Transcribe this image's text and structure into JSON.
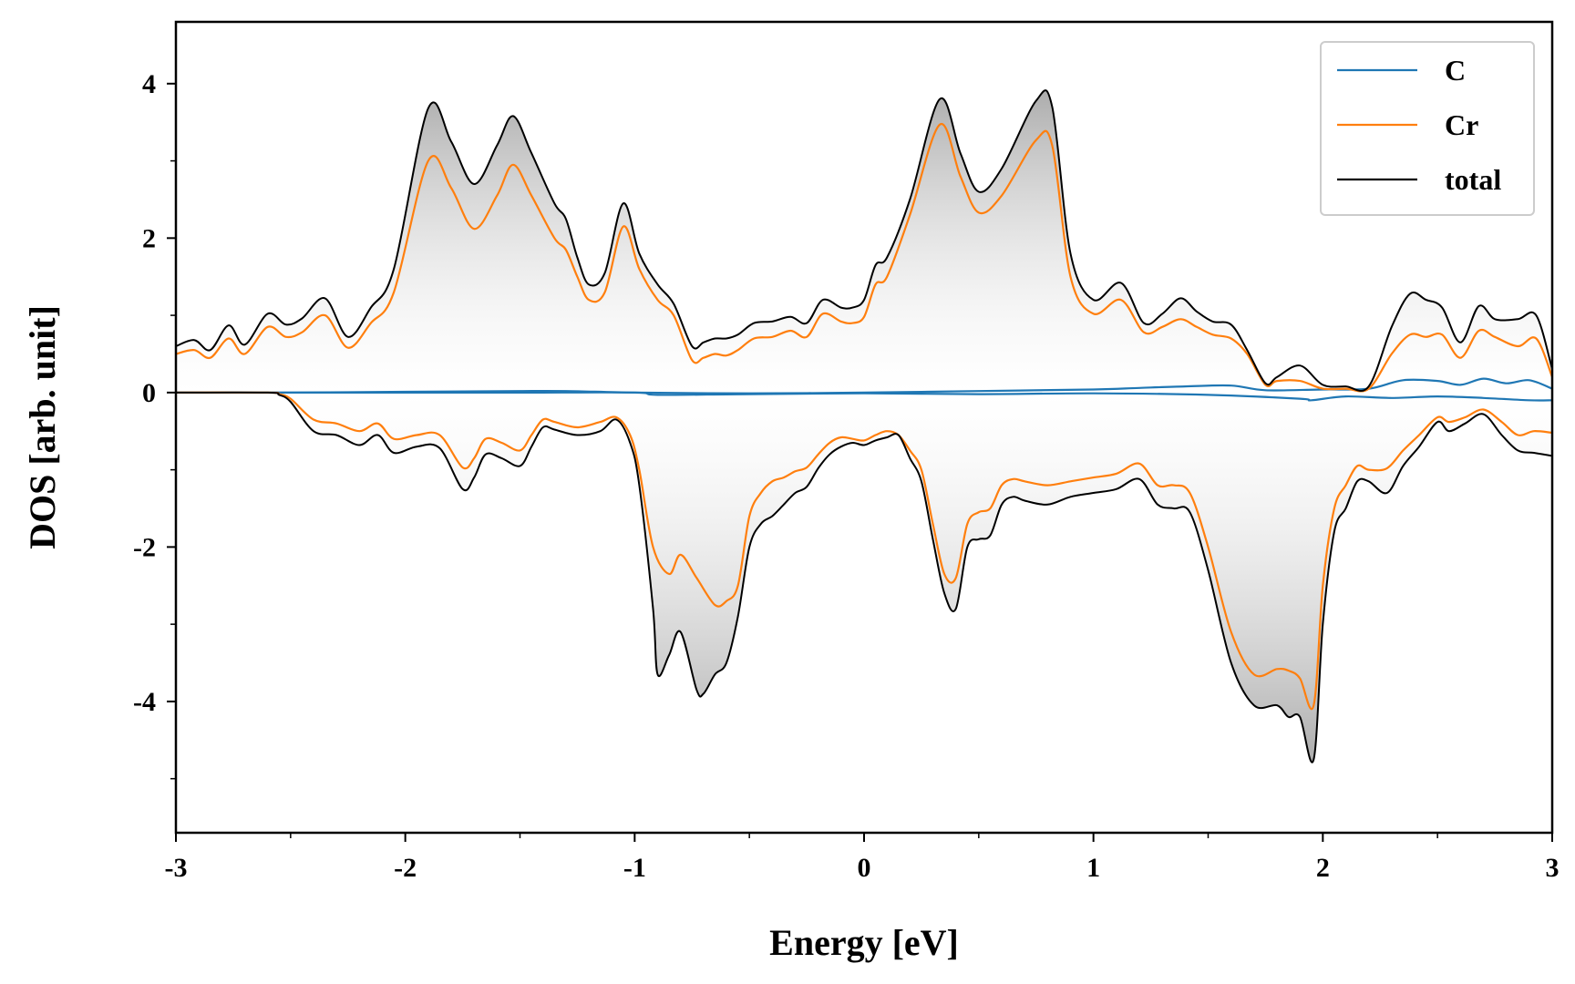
{
  "chart_data": {
    "type": "line",
    "title": "",
    "xlabel": "Energy [eV]",
    "ylabel": "DOS [arb. unit]",
    "xlim": [
      -3,
      3
    ],
    "ylim": [
      -5.7,
      4.8
    ],
    "x_ticks": [
      -3,
      -2,
      -1,
      0,
      1,
      2,
      3
    ],
    "x_tick_labels": [
      "-3",
      "-2",
      "-1",
      "0",
      "1",
      "2",
      "3"
    ],
    "y_ticks": [
      -4,
      -2,
      0,
      2,
      4
    ],
    "y_tick_labels": [
      "-4",
      "-2",
      "0",
      "2",
      "4"
    ],
    "grid": false,
    "legend_position": "top-right",
    "fill": "gray gradient between total curves and zero",
    "colors": {
      "C": "#1f77b4",
      "Cr": "#ff7f0e",
      "total": "#000000",
      "fill": "#bdbdbd"
    },
    "series": [
      {
        "name": "C",
        "spin": "up",
        "x": [
          -3.0,
          -2.5,
          -2.0,
          -1.5,
          -1.3,
          -1.0,
          -0.5,
          0.0,
          0.5,
          1.0,
          1.2,
          1.4,
          1.6,
          1.75,
          2.0,
          2.2,
          2.35,
          2.5,
          2.6,
          2.7,
          2.8,
          2.9,
          3.0
        ],
        "y": [
          0.0,
          0.0,
          0.01,
          0.02,
          0.02,
          0.0,
          -0.01,
          0.0,
          0.02,
          0.04,
          0.06,
          0.08,
          0.09,
          0.03,
          0.04,
          0.05,
          0.16,
          0.15,
          0.1,
          0.18,
          0.12,
          0.16,
          0.05
        ]
      },
      {
        "name": "C",
        "spin": "down",
        "x": [
          -3.0,
          -2.5,
          -2.0,
          -1.5,
          -1.0,
          -0.9,
          -0.5,
          0.0,
          0.5,
          1.0,
          1.5,
          1.9,
          1.95,
          2.1,
          2.3,
          2.5,
          2.7,
          2.9,
          3.0
        ],
        "y": [
          0.0,
          0.0,
          0.0,
          0.0,
          0.0,
          -0.03,
          -0.02,
          -0.01,
          -0.02,
          -0.01,
          -0.03,
          -0.08,
          -0.1,
          -0.05,
          -0.07,
          -0.05,
          -0.07,
          -0.1,
          -0.1
        ]
      },
      {
        "name": "Cr",
        "spin": "up",
        "x": [
          -3.0,
          -2.92,
          -2.85,
          -2.77,
          -2.7,
          -2.6,
          -2.52,
          -2.45,
          -2.35,
          -2.25,
          -2.15,
          -2.05,
          -1.9,
          -1.8,
          -1.7,
          -1.6,
          -1.53,
          -1.45,
          -1.35,
          -1.3,
          -1.25,
          -1.2,
          -1.13,
          -1.05,
          -0.98,
          -0.9,
          -0.83,
          -0.75,
          -0.7,
          -0.65,
          -0.6,
          -0.55,
          -0.48,
          -0.4,
          -0.32,
          -0.25,
          -0.18,
          -0.1,
          -0.05,
          0.0,
          0.05,
          0.1,
          0.2,
          0.33,
          0.42,
          0.5,
          0.6,
          0.75,
          0.82,
          0.9,
          1.0,
          1.12,
          1.22,
          1.3,
          1.38,
          1.45,
          1.52,
          1.6,
          1.67,
          1.75,
          1.8,
          1.9,
          2.0,
          2.1,
          2.2,
          2.3,
          2.38,
          2.45,
          2.52,
          2.6,
          2.68,
          2.75,
          2.85,
          2.93,
          3.0
        ],
        "y": [
          0.5,
          0.55,
          0.45,
          0.7,
          0.5,
          0.85,
          0.72,
          0.78,
          1.0,
          0.58,
          0.9,
          1.3,
          3.0,
          2.65,
          2.12,
          2.55,
          2.95,
          2.55,
          2.0,
          1.85,
          1.5,
          1.2,
          1.3,
          2.15,
          1.6,
          1.2,
          1.0,
          0.42,
          0.45,
          0.5,
          0.48,
          0.55,
          0.7,
          0.72,
          0.8,
          0.72,
          1.02,
          0.92,
          0.9,
          0.98,
          1.4,
          1.5,
          2.3,
          3.47,
          2.8,
          2.33,
          2.55,
          3.27,
          3.2,
          1.5,
          1.02,
          1.2,
          0.78,
          0.85,
          0.95,
          0.85,
          0.75,
          0.7,
          0.5,
          0.1,
          0.15,
          0.15,
          0.05,
          0.05,
          0.05,
          0.5,
          0.75,
          0.72,
          0.75,
          0.45,
          0.8,
          0.72,
          0.6,
          0.7,
          0.2
        ]
      },
      {
        "name": "Cr",
        "spin": "down",
        "x": [
          -3.0,
          -2.6,
          -2.55,
          -2.5,
          -2.4,
          -2.3,
          -2.2,
          -2.12,
          -2.05,
          -1.95,
          -1.85,
          -1.75,
          -1.7,
          -1.65,
          -1.58,
          -1.5,
          -1.45,
          -1.4,
          -1.35,
          -1.25,
          -1.15,
          -1.08,
          -1.02,
          -0.98,
          -0.92,
          -0.85,
          -0.8,
          -0.73,
          -0.65,
          -0.6,
          -0.55,
          -0.5,
          -0.45,
          -0.4,
          -0.35,
          -0.3,
          -0.25,
          -0.2,
          -0.15,
          -0.1,
          -0.05,
          0.0,
          0.05,
          0.1,
          0.15,
          0.2,
          0.25,
          0.3,
          0.35,
          0.4,
          0.45,
          0.5,
          0.55,
          0.6,
          0.65,
          0.7,
          0.8,
          0.9,
          1.0,
          1.1,
          1.2,
          1.28,
          1.35,
          1.42,
          1.5,
          1.6,
          1.7,
          1.8,
          1.85,
          1.9,
          1.96,
          2.0,
          2.05,
          2.1,
          2.15,
          2.2,
          2.28,
          2.35,
          2.42,
          2.5,
          2.55,
          2.62,
          2.7,
          2.78,
          2.85,
          2.92,
          3.0
        ],
        "y": [
          0.0,
          0.0,
          -0.02,
          -0.08,
          -0.35,
          -0.4,
          -0.5,
          -0.4,
          -0.6,
          -0.55,
          -0.55,
          -0.97,
          -0.85,
          -0.6,
          -0.65,
          -0.75,
          -0.55,
          -0.35,
          -0.38,
          -0.45,
          -0.38,
          -0.32,
          -0.55,
          -1.0,
          -2.0,
          -2.35,
          -2.1,
          -2.4,
          -2.75,
          -2.7,
          -2.5,
          -1.6,
          -1.3,
          -1.15,
          -1.1,
          -1.02,
          -0.97,
          -0.8,
          -0.65,
          -0.58,
          -0.6,
          -0.62,
          -0.55,
          -0.5,
          -0.55,
          -0.75,
          -1.0,
          -1.7,
          -2.35,
          -2.4,
          -1.7,
          -1.55,
          -1.5,
          -1.2,
          -1.12,
          -1.15,
          -1.2,
          -1.15,
          -1.1,
          -1.05,
          -0.92,
          -1.2,
          -1.2,
          -1.3,
          -2.0,
          -3.1,
          -3.65,
          -3.58,
          -3.6,
          -3.7,
          -4.05,
          -2.5,
          -1.5,
          -1.2,
          -0.95,
          -1.0,
          -0.98,
          -0.75,
          -0.55,
          -0.32,
          -0.38,
          -0.32,
          -0.22,
          -0.38,
          -0.55,
          -0.5,
          -0.52
        ]
      },
      {
        "name": "total",
        "spin": "up",
        "x": [
          -3.0,
          -2.92,
          -2.85,
          -2.77,
          -2.7,
          -2.6,
          -2.52,
          -2.45,
          -2.35,
          -2.25,
          -2.15,
          -2.05,
          -1.9,
          -1.8,
          -1.7,
          -1.6,
          -1.53,
          -1.45,
          -1.35,
          -1.3,
          -1.25,
          -1.2,
          -1.13,
          -1.05,
          -0.98,
          -0.9,
          -0.83,
          -0.75,
          -0.7,
          -0.65,
          -0.6,
          -0.55,
          -0.48,
          -0.4,
          -0.32,
          -0.25,
          -0.18,
          -0.1,
          -0.05,
          0.0,
          0.05,
          0.1,
          0.2,
          0.33,
          0.42,
          0.5,
          0.6,
          0.75,
          0.82,
          0.9,
          1.0,
          1.12,
          1.22,
          1.3,
          1.38,
          1.45,
          1.52,
          1.6,
          1.67,
          1.75,
          1.8,
          1.9,
          2.0,
          2.1,
          2.2,
          2.3,
          2.38,
          2.45,
          2.52,
          2.6,
          2.68,
          2.75,
          2.85,
          2.93,
          3.0
        ],
        "y": [
          0.6,
          0.68,
          0.55,
          0.87,
          0.62,
          1.02,
          0.88,
          0.96,
          1.22,
          0.72,
          1.1,
          1.6,
          3.68,
          3.25,
          2.7,
          3.2,
          3.58,
          3.1,
          2.45,
          2.25,
          1.75,
          1.4,
          1.55,
          2.45,
          1.8,
          1.4,
          1.15,
          0.6,
          0.65,
          0.7,
          0.7,
          0.75,
          0.9,
          0.92,
          0.98,
          0.9,
          1.2,
          1.1,
          1.1,
          1.2,
          1.65,
          1.75,
          2.5,
          3.8,
          3.1,
          2.6,
          2.9,
          3.78,
          3.7,
          1.8,
          1.2,
          1.42,
          0.9,
          1.02,
          1.22,
          1.05,
          0.92,
          0.88,
          0.55,
          0.12,
          0.2,
          0.35,
          0.1,
          0.08,
          0.08,
          0.85,
          1.28,
          1.2,
          1.1,
          0.65,
          1.12,
          0.95,
          0.95,
          1.0,
          0.3
        ]
      },
      {
        "name": "total",
        "spin": "down",
        "x": [
          -3.0,
          -2.6,
          -2.55,
          -2.5,
          -2.4,
          -2.3,
          -2.2,
          -2.12,
          -2.05,
          -1.95,
          -1.85,
          -1.75,
          -1.7,
          -1.65,
          -1.58,
          -1.5,
          -1.45,
          -1.4,
          -1.35,
          -1.25,
          -1.15,
          -1.08,
          -1.02,
          -0.98,
          -0.92,
          -0.9,
          -0.85,
          -0.8,
          -0.73,
          -0.7,
          -0.65,
          -0.6,
          -0.55,
          -0.5,
          -0.45,
          -0.4,
          -0.35,
          -0.3,
          -0.25,
          -0.2,
          -0.15,
          -0.1,
          -0.05,
          0.0,
          0.05,
          0.1,
          0.15,
          0.2,
          0.25,
          0.3,
          0.35,
          0.4,
          0.45,
          0.5,
          0.55,
          0.6,
          0.65,
          0.7,
          0.8,
          0.9,
          1.0,
          1.1,
          1.2,
          1.28,
          1.35,
          1.42,
          1.5,
          1.6,
          1.7,
          1.8,
          1.85,
          1.9,
          1.96,
          2.0,
          2.05,
          2.1,
          2.15,
          2.2,
          2.28,
          2.35,
          2.42,
          2.5,
          2.55,
          2.62,
          2.7,
          2.78,
          2.85,
          2.92,
          3.0
        ],
        "y": [
          0.0,
          0.0,
          -0.03,
          -0.12,
          -0.5,
          -0.55,
          -0.68,
          -0.55,
          -0.78,
          -0.7,
          -0.72,
          -1.25,
          -1.1,
          -0.8,
          -0.85,
          -0.95,
          -0.7,
          -0.45,
          -0.48,
          -0.55,
          -0.5,
          -0.35,
          -0.65,
          -1.2,
          -2.8,
          -3.65,
          -3.4,
          -3.1,
          -3.85,
          -3.9,
          -3.65,
          -3.5,
          -2.9,
          -2.0,
          -1.7,
          -1.6,
          -1.45,
          -1.3,
          -1.22,
          -0.98,
          -0.8,
          -0.7,
          -0.65,
          -0.68,
          -0.62,
          -0.58,
          -0.55,
          -0.85,
          -1.15,
          -1.9,
          -2.6,
          -2.8,
          -2.0,
          -1.9,
          -1.85,
          -1.45,
          -1.35,
          -1.4,
          -1.45,
          -1.35,
          -1.3,
          -1.25,
          -1.12,
          -1.45,
          -1.5,
          -1.55,
          -2.3,
          -3.5,
          -4.05,
          -4.05,
          -4.2,
          -4.2,
          -4.75,
          -3.0,
          -1.8,
          -1.5,
          -1.15,
          -1.15,
          -1.3,
          -0.95,
          -0.7,
          -0.38,
          -0.5,
          -0.4,
          -0.28,
          -0.55,
          -0.75,
          -0.78,
          -0.82
        ]
      }
    ]
  }
}
